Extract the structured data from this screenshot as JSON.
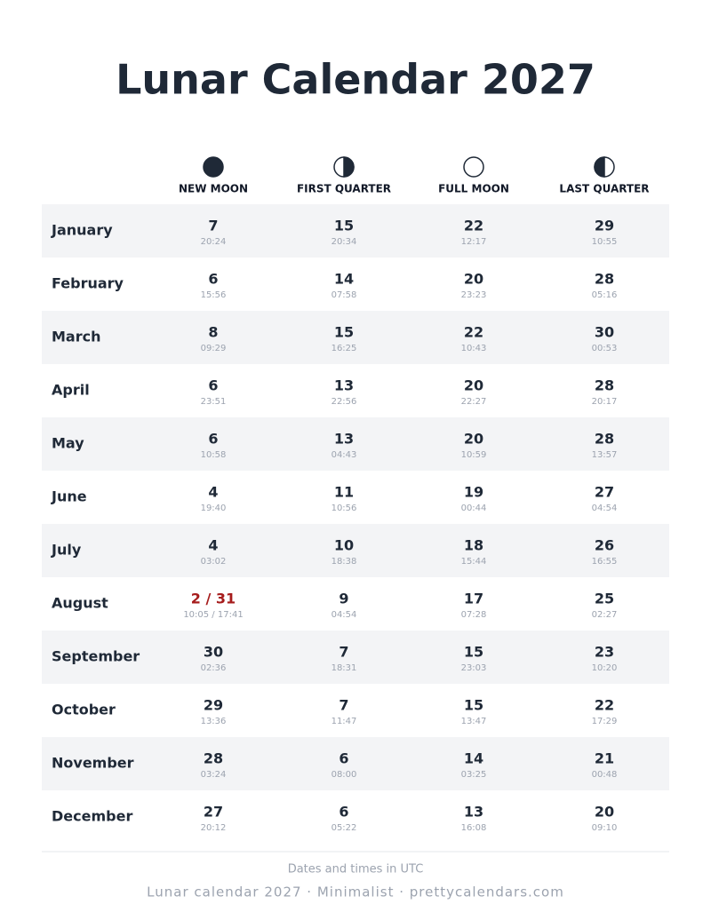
{
  "header": {
    "title": "Lunar Calendar 2027"
  },
  "table": {
    "columns": [
      "NEW MOON",
      "FIRST QUARTER",
      "FULL MOON",
      "LAST QUARTER"
    ],
    "rows": [
      {
        "month": "January",
        "cells": [
          {
            "day": "7",
            "time": "20:24"
          },
          {
            "day": "15",
            "time": "20:34"
          },
          {
            "day": "22",
            "time": "12:17"
          },
          {
            "day": "29",
            "time": "10:55"
          }
        ]
      },
      {
        "month": "February",
        "cells": [
          {
            "day": "6",
            "time": "15:56"
          },
          {
            "day": "14",
            "time": "07:58"
          },
          {
            "day": "20",
            "time": "23:23"
          },
          {
            "day": "28",
            "time": "05:16"
          }
        ]
      },
      {
        "month": "March",
        "cells": [
          {
            "day": "8",
            "time": "09:29"
          },
          {
            "day": "15",
            "time": "16:25"
          },
          {
            "day": "22",
            "time": "10:43"
          },
          {
            "day": "30",
            "time": "00:53"
          }
        ]
      },
      {
        "month": "April",
        "cells": [
          {
            "day": "6",
            "time": "23:51"
          },
          {
            "day": "13",
            "time": "22:56"
          },
          {
            "day": "20",
            "time": "22:27"
          },
          {
            "day": "28",
            "time": "20:17"
          }
        ]
      },
      {
        "month": "May",
        "cells": [
          {
            "day": "6",
            "time": "10:58"
          },
          {
            "day": "13",
            "time": "04:43"
          },
          {
            "day": "20",
            "time": "10:59"
          },
          {
            "day": "28",
            "time": "13:57"
          }
        ]
      },
      {
        "month": "June",
        "cells": [
          {
            "day": "4",
            "time": "19:40"
          },
          {
            "day": "11",
            "time": "10:56"
          },
          {
            "day": "19",
            "time": "00:44"
          },
          {
            "day": "27",
            "time": "04:54"
          }
        ]
      },
      {
        "month": "July",
        "cells": [
          {
            "day": "4",
            "time": "03:02"
          },
          {
            "day": "10",
            "time": "18:38"
          },
          {
            "day": "18",
            "time": "15:44"
          },
          {
            "day": "26",
            "time": "16:55"
          }
        ]
      },
      {
        "month": "August",
        "cells": [
          {
            "day": "2 / 31",
            "time": "10:05 / 17:41",
            "color": "#a61c1c"
          },
          {
            "day": "9",
            "time": "04:54"
          },
          {
            "day": "17",
            "time": "07:28"
          },
          {
            "day": "25",
            "time": "02:27"
          }
        ]
      },
      {
        "month": "September",
        "cells": [
          {
            "day": "30",
            "time": "02:36"
          },
          {
            "day": "7",
            "time": "18:31"
          },
          {
            "day": "15",
            "time": "23:03"
          },
          {
            "day": "23",
            "time": "10:20"
          }
        ]
      },
      {
        "month": "October",
        "cells": [
          {
            "day": "29",
            "time": "13:36"
          },
          {
            "day": "7",
            "time": "11:47"
          },
          {
            "day": "15",
            "time": "13:47"
          },
          {
            "day": "22",
            "time": "17:29"
          }
        ]
      },
      {
        "month": "November",
        "cells": [
          {
            "day": "28",
            "time": "03:24"
          },
          {
            "day": "6",
            "time": "08:00"
          },
          {
            "day": "14",
            "time": "03:25"
          },
          {
            "day": "21",
            "time": "00:48"
          }
        ]
      },
      {
        "month": "December",
        "cells": [
          {
            "day": "27",
            "time": "20:12"
          },
          {
            "day": "6",
            "time": "05:22"
          },
          {
            "day": "13",
            "time": "16:08"
          },
          {
            "day": "20",
            "time": "09:10"
          }
        ]
      }
    ]
  },
  "footer": {
    "note": "Dates and times in UTC",
    "credit": "Lunar calendar 2027 · Minimalist · prettycalendars.com"
  }
}
